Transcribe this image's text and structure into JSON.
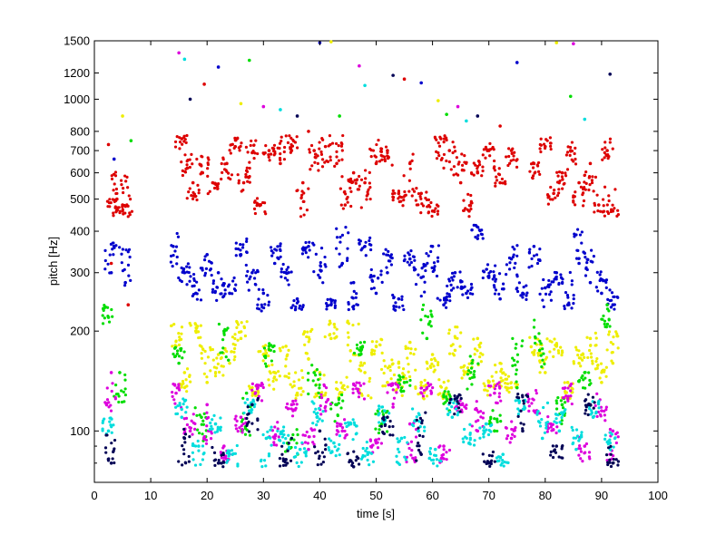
{
  "chart_data": {
    "type": "scatter",
    "xlabel": "time [s]",
    "ylabel": "pitch [Hz]",
    "xlim": [
      0,
      100
    ],
    "ylim": [
      70,
      1500
    ],
    "yscale": "log",
    "grid": false,
    "x_ticks": [
      0,
      10,
      20,
      30,
      40,
      50,
      60,
      70,
      80,
      90,
      100
    ],
    "y_ticks": [
      100,
      200,
      300,
      400,
      500,
      600,
      700,
      800,
      1000,
      1200,
      1500
    ],
    "y_minor_ticks": [
      80,
      90
    ],
    "colors": [
      "#dd0000",
      "#0000cc",
      "#eeee00",
      "#00dd00",
      "#dd00dd",
      "#00dddd",
      "#000055"
    ],
    "series": [
      {
        "color": "#dd0000",
        "band": [
          440,
          780
        ],
        "points": [
          [
            3,
            320
          ],
          [
            4,
            500
          ],
          [
            5,
            480
          ],
          [
            6,
            240
          ],
          [
            15.5,
            760
          ],
          [
            16.5,
            620
          ],
          [
            17.5,
            560
          ],
          [
            19.2,
            600
          ],
          [
            21,
            560
          ],
          [
            23.5,
            640
          ],
          [
            25,
            720
          ],
          [
            26.5,
            560
          ],
          [
            28,
            690
          ],
          [
            29.5,
            480
          ],
          [
            31,
            700
          ],
          [
            33,
            640
          ],
          [
            35,
            700
          ],
          [
            37,
            560
          ],
          [
            39,
            700
          ],
          [
            41,
            720
          ],
          [
            43,
            640
          ],
          [
            44.5,
            480
          ],
          [
            46,
            600
          ],
          [
            48,
            560
          ],
          [
            50,
            640
          ],
          [
            52,
            700
          ],
          [
            54,
            520
          ],
          [
            56,
            640
          ],
          [
            58,
            520
          ],
          [
            60,
            460
          ],
          [
            61.5,
            760
          ],
          [
            63,
            700
          ],
          [
            65,
            560
          ],
          [
            66.5,
            460
          ],
          [
            68,
            600
          ],
          [
            70,
            700
          ],
          [
            72,
            560
          ],
          [
            74,
            700
          ],
          [
            78,
            640
          ],
          [
            80,
            720
          ],
          [
            81.5,
            520
          ],
          [
            83,
            600
          ],
          [
            84.5,
            700
          ],
          [
            86,
            560
          ],
          [
            88,
            640
          ],
          [
            89.5,
            480
          ],
          [
            91,
            700
          ],
          [
            92,
            460
          ]
        ]
      },
      {
        "color": "#0000cc",
        "band": [
          230,
          420
        ],
        "points": [
          [
            3,
            300
          ],
          [
            5.5,
            280
          ],
          [
            14,
            360
          ],
          [
            16,
            300
          ],
          [
            18,
            260
          ],
          [
            20,
            340
          ],
          [
            22,
            300
          ],
          [
            24,
            260
          ],
          [
            26,
            340
          ],
          [
            28,
            300
          ],
          [
            30,
            260
          ],
          [
            32,
            320
          ],
          [
            34,
            300
          ],
          [
            36,
            250
          ],
          [
            38,
            360
          ],
          [
            40,
            290
          ],
          [
            42,
            240
          ],
          [
            44,
            320
          ],
          [
            46,
            280
          ],
          [
            48,
            360
          ],
          [
            50,
            260
          ],
          [
            52,
            300
          ],
          [
            54,
            250
          ],
          [
            56,
            330
          ],
          [
            58,
            290
          ],
          [
            60,
            360
          ],
          [
            62,
            240
          ],
          [
            64,
            300
          ],
          [
            66,
            260
          ],
          [
            68,
            380
          ],
          [
            70,
            290
          ],
          [
            72,
            250
          ],
          [
            74,
            330
          ],
          [
            76,
            260
          ],
          [
            78,
            360
          ],
          [
            80,
            270
          ],
          [
            82,
            300
          ],
          [
            84,
            240
          ],
          [
            86,
            320
          ],
          [
            88,
            280
          ],
          [
            90,
            260
          ],
          [
            92,
            240
          ]
        ]
      },
      {
        "color": "#eeee00",
        "band": [
          125,
          215
        ],
        "points": [
          [
            14.5,
            180
          ],
          [
            16,
            150
          ],
          [
            18,
            200
          ],
          [
            20,
            140
          ],
          [
            22,
            170
          ],
          [
            24,
            160
          ],
          [
            26,
            190
          ],
          [
            28,
            135
          ],
          [
            30,
            170
          ],
          [
            32,
            150
          ],
          [
            34,
            180
          ],
          [
            36,
            130
          ],
          [
            38,
            165
          ],
          [
            40,
            150
          ],
          [
            42,
            190
          ],
          [
            44,
            135
          ],
          [
            46,
            170
          ],
          [
            48,
            150
          ],
          [
            50,
            180
          ],
          [
            52,
            140
          ],
          [
            54,
            160
          ],
          [
            56,
            185
          ],
          [
            58,
            140
          ],
          [
            60,
            170
          ],
          [
            62,
            130
          ],
          [
            64,
            175
          ],
          [
            66,
            150
          ],
          [
            68,
            190
          ],
          [
            70,
            140
          ],
          [
            72,
            160
          ],
          [
            74,
            135
          ],
          [
            78,
            170
          ],
          [
            80,
            150
          ],
          [
            82,
            180
          ],
          [
            84,
            140
          ],
          [
            86,
            160
          ],
          [
            88,
            190
          ],
          [
            90,
            140
          ],
          [
            92,
            160
          ]
        ]
      },
      {
        "color": "#00dd00",
        "band": [
          85,
          240
        ],
        "points": [
          [
            2.5,
            220
          ],
          [
            4.5,
            150
          ],
          [
            15,
            160
          ],
          [
            19,
            110
          ],
          [
            23,
            200
          ],
          [
            27,
            130
          ],
          [
            31,
            180
          ],
          [
            35,
            95
          ],
          [
            39,
            150
          ],
          [
            43,
            120
          ],
          [
            47,
            170
          ],
          [
            51,
            105
          ],
          [
            55,
            140
          ],
          [
            59,
            190
          ],
          [
            63,
            115
          ],
          [
            67,
            160
          ],
          [
            71,
            100
          ],
          [
            75,
            135
          ],
          [
            79,
            175
          ],
          [
            83,
            120
          ],
          [
            87,
            150
          ],
          [
            91,
            240
          ]
        ]
      },
      {
        "color": "#dd00dd",
        "band": [
          80,
          140
        ],
        "points": [
          [
            3,
            150
          ],
          [
            14.5,
            130
          ],
          [
            17,
            100
          ],
          [
            20,
            120
          ],
          [
            23,
            90
          ],
          [
            26,
            110
          ],
          [
            29,
            135
          ],
          [
            32,
            95
          ],
          [
            35,
            120
          ],
          [
            38,
            88
          ],
          [
            41,
            115
          ],
          [
            44,
            100
          ],
          [
            47,
            130
          ],
          [
            50,
            92
          ],
          [
            53,
            118
          ],
          [
            56,
            105
          ],
          [
            59,
            135
          ],
          [
            62,
            90
          ],
          [
            65,
            120
          ],
          [
            68,
            100
          ],
          [
            71,
            130
          ],
          [
            74,
            95
          ],
          [
            78,
            115
          ],
          [
            81,
            105
          ],
          [
            84,
            125
          ],
          [
            87,
            90
          ],
          [
            90,
            115
          ],
          [
            92,
            100
          ]
        ]
      },
      {
        "color": "#00dddd",
        "band": [
          78,
          125
        ],
        "points": [
          [
            2.5,
            100
          ],
          [
            15.5,
            110
          ],
          [
            18.5,
            90
          ],
          [
            21.5,
            105
          ],
          [
            24.5,
            85
          ],
          [
            27.5,
            115
          ],
          [
            30.5,
            95
          ],
          [
            33.5,
            100
          ],
          [
            36.5,
            88
          ],
          [
            39.5,
            110
          ],
          [
            42.5,
            92
          ],
          [
            45.5,
            105
          ],
          [
            48.5,
            85
          ],
          [
            51.5,
            115
          ],
          [
            54.5,
            95
          ],
          [
            57.5,
            100
          ],
          [
            60.5,
            88
          ],
          [
            63.5,
            110
          ],
          [
            66.5,
            92
          ],
          [
            69.5,
            105
          ],
          [
            72.5,
            85
          ],
          [
            75.5,
            115
          ],
          [
            79.5,
            95
          ],
          [
            82.5,
            100
          ],
          [
            85.5,
            88
          ],
          [
            88.5,
            110
          ],
          [
            91.5,
            92
          ]
        ]
      },
      {
        "color": "#000055",
        "band": [
          78,
          130
        ],
        "points": [
          [
            3,
            80
          ],
          [
            16,
            95
          ],
          [
            22,
            80
          ],
          [
            28,
            120
          ],
          [
            34,
            82
          ],
          [
            40,
            100
          ],
          [
            46,
            78
          ],
          [
            52,
            110
          ],
          [
            58,
            85
          ],
          [
            64,
            125
          ],
          [
            70,
            80
          ],
          [
            76,
            100
          ],
          [
            82,
            90
          ],
          [
            88,
            120
          ],
          [
            92,
            80
          ]
        ]
      }
    ],
    "outliers": [
      [
        2.5,
        730
      ],
      [
        3.5,
        660
      ],
      [
        5,
        890
      ],
      [
        6.5,
        750
      ],
      [
        15,
        1380
      ],
      [
        16,
        1320
      ],
      [
        17,
        1000
      ],
      [
        19.5,
        1110
      ],
      [
        22,
        1250
      ],
      [
        26,
        970
      ],
      [
        27.5,
        1310
      ],
      [
        30,
        950
      ],
      [
        33,
        930
      ],
      [
        36,
        890
      ],
      [
        38,
        800
      ],
      [
        40,
        1480
      ],
      [
        42,
        1490
      ],
      [
        43.5,
        890
      ],
      [
        47,
        1260
      ],
      [
        48,
        1100
      ],
      [
        53,
        1180
      ],
      [
        55,
        1150
      ],
      [
        58,
        1120
      ],
      [
        61,
        990
      ],
      [
        62.5,
        900
      ],
      [
        64.5,
        950
      ],
      [
        66,
        860
      ],
      [
        68,
        890
      ],
      [
        72,
        830
      ],
      [
        75,
        1290
      ],
      [
        82,
        1480
      ],
      [
        84.5,
        1020
      ],
      [
        85,
        1470
      ],
      [
        87,
        870
      ],
      [
        91.5,
        1190
      ]
    ]
  }
}
